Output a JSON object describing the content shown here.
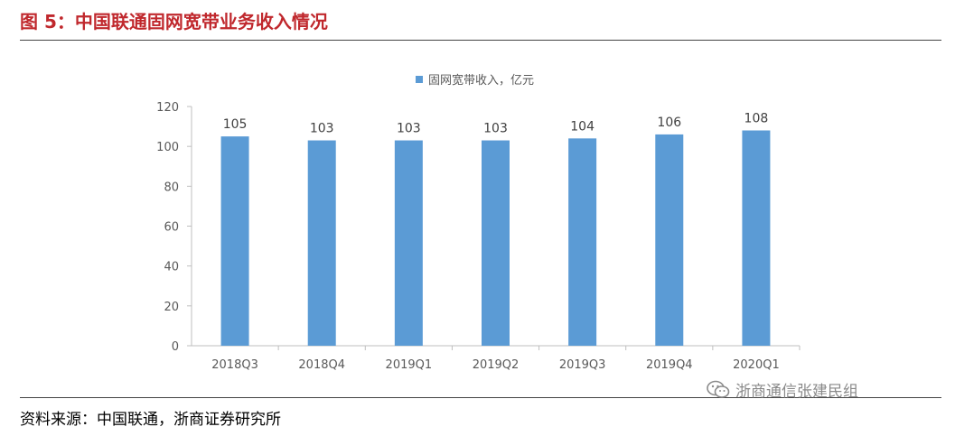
{
  "figure": {
    "title": "图 5：中国联通固网宽带业务收入情况",
    "source": "资料来源：中国联通，浙商证券研究所",
    "watermark": "浙商通信张建民组",
    "watermark_icon": "wechat-icon"
  },
  "colors": {
    "title": "#c0282d",
    "bar": "#5b9bd5",
    "axis_text": "#595959"
  },
  "chart_data": {
    "type": "bar",
    "title": "",
    "xlabel": "",
    "ylabel": "",
    "categories": [
      "2018Q3",
      "2018Q4",
      "2019Q1",
      "2019Q2",
      "2019Q3",
      "2019Q4",
      "2020Q1"
    ],
    "series": [
      {
        "name": "固网宽带收入，亿元",
        "values": [
          105,
          103,
          103,
          103,
          104,
          106,
          108
        ]
      }
    ],
    "data_labels": [
      "105",
      "103",
      "103",
      "103",
      "104",
      "106",
      "108"
    ],
    "ylim": [
      0,
      120
    ],
    "yticks": [
      0,
      20,
      40,
      60,
      80,
      100,
      120
    ],
    "grid": false,
    "legend_position": "top-center"
  }
}
